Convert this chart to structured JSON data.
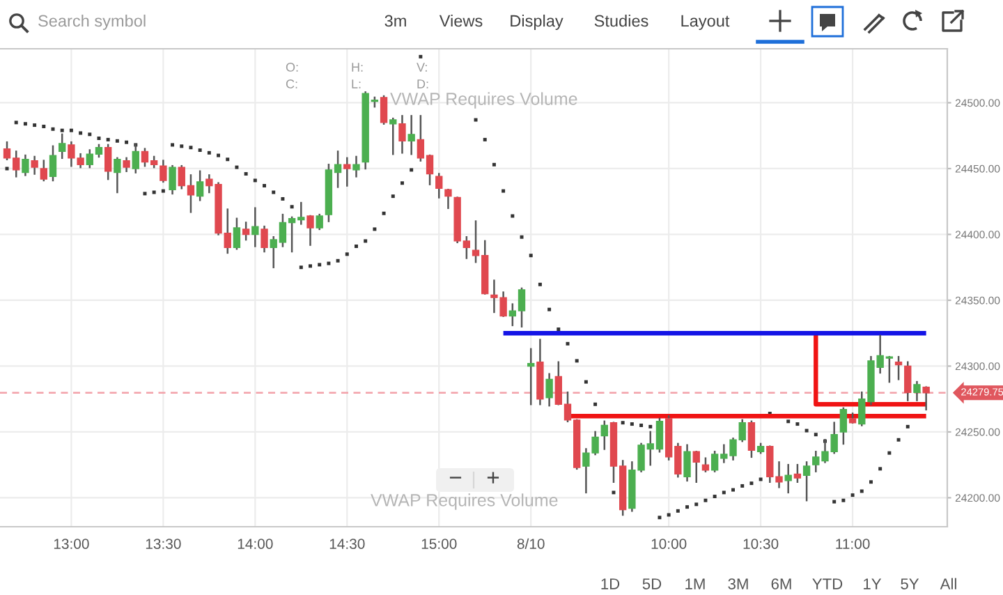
{
  "chart_data": {
    "type": "candlestick",
    "categories": [
      null,
      null,
      null,
      null,
      null,
      null,
      null,
      "13:00",
      null,
      null,
      null,
      null,
      null,
      null,
      null,
      null,
      null,
      "13:30",
      null,
      null,
      null,
      null,
      null,
      null,
      null,
      null,
      null,
      "14:00",
      null,
      null,
      null,
      null,
      null,
      null,
      null,
      null,
      null,
      "14:30",
      null,
      null,
      null,
      null,
      null,
      null,
      null,
      null,
      null,
      "15:00",
      null,
      null,
      null,
      null,
      null,
      null,
      null,
      null,
      null,
      "8/10",
      null,
      null,
      null,
      null,
      null,
      null,
      null,
      null,
      null,
      null,
      null,
      null,
      null,
      null,
      "10:00",
      null,
      null,
      null,
      null,
      null,
      null,
      null,
      null,
      null,
      "10:30",
      null,
      null,
      null,
      null,
      null,
      null,
      null,
      null,
      null,
      "11:00",
      null,
      null,
      null,
      null,
      null,
      null,
      null,
      null
    ],
    "ylim": [
      24178,
      24541
    ],
    "yticks": [
      {
        "value": 24200,
        "label": "24200.00"
      },
      {
        "value": 24250,
        "label": "24250.00"
      },
      {
        "value": 24300,
        "label": "24300.00"
      },
      {
        "value": 24350,
        "label": "24350.00"
      },
      {
        "value": 24400,
        "label": "24400.00"
      },
      {
        "value": 24450,
        "label": "24450.00"
      },
      {
        "value": 24500,
        "label": "24500.00"
      }
    ],
    "grid": true,
    "series": [
      {
        "color": "#555555",
        "ohlc": [
          [
            24465,
            24470,
            24457,
            24458
          ],
          [
            24458,
            24463,
            24444,
            24449
          ],
          [
            24447,
            24460,
            24445,
            24457
          ],
          [
            24456,
            24459,
            24446,
            24451
          ],
          [
            24450,
            24456,
            24441,
            24442
          ],
          [
            24444,
            24467,
            24441,
            24460
          ],
          [
            24463,
            24476,
            24458,
            24469
          ],
          [
            24468,
            24470,
            24452,
            24458
          ],
          [
            24458,
            24461,
            24451,
            24453
          ],
          [
            24453,
            24464,
            24451,
            24461
          ],
          [
            24461,
            24468,
            24459,
            24466
          ],
          [
            24466,
            24468,
            24442,
            24448
          ],
          [
            24447,
            24458,
            24432,
            24457
          ],
          [
            24456,
            24458,
            24448,
            24451
          ],
          [
            24450,
            24468,
            24447,
            24463
          ],
          [
            24463,
            24465,
            24452,
            24455
          ],
          [
            24456,
            24459,
            24451,
            24453
          ],
          [
            24452,
            24456,
            24440,
            24441
          ],
          [
            24434,
            24452,
            24431,
            24451
          ],
          [
            24451,
            24452,
            24435,
            24437
          ],
          [
            24437,
            24445,
            24417,
            24430
          ],
          [
            24429,
            24448,
            24426,
            24440
          ],
          [
            24442,
            24445,
            24432,
            24437
          ],
          [
            24438,
            24439,
            24400,
            24401
          ],
          [
            24401,
            24419,
            24386,
            24390
          ],
          [
            24390,
            24412,
            24389,
            24405
          ],
          [
            24404,
            24409,
            24396,
            24400
          ],
          [
            24400,
            24420,
            24391,
            24406
          ],
          [
            24404,
            24406,
            24387,
            24390
          ],
          [
            24390,
            24398,
            24375,
            24396
          ],
          [
            24394,
            24415,
            24391,
            24409
          ],
          [
            24409,
            24413,
            24387,
            24412
          ],
          [
            24411,
            24424,
            24408,
            24413
          ],
          [
            24414,
            24414,
            24392,
            24405
          ],
          [
            24405,
            24415,
            24404,
            24414
          ],
          [
            24415,
            24453,
            24410,
            24449
          ],
          [
            24447,
            24463,
            24436,
            24453
          ],
          [
            24453,
            24458,
            24437,
            24450
          ],
          [
            24449,
            24459,
            24444,
            24453
          ],
          [
            24455,
            24508,
            24450,
            24507
          ],
          [
            24501,
            24504,
            24497,
            24502
          ],
          [
            24504,
            24505,
            24484,
            24485
          ],
          [
            24484,
            24488,
            24461,
            24487
          ],
          [
            24484,
            24490,
            24462,
            24471
          ],
          [
            24471,
            24490,
            24461,
            24476
          ],
          [
            24472,
            24490,
            24456,
            24458
          ],
          [
            24460,
            24460,
            24438,
            24446
          ],
          [
            24444,
            24446,
            24428,
            24435
          ],
          [
            24434,
            24434,
            24420,
            24429
          ],
          [
            24428,
            24428,
            24394,
            24395
          ],
          [
            24395,
            24398,
            24382,
            24390
          ],
          [
            24388,
            24410,
            24379,
            24384
          ],
          [
            24384,
            24395,
            24355,
            24355
          ],
          [
            24354,
            24365,
            24341,
            24352
          ],
          [
            24352,
            24356,
            24338,
            24338
          ],
          [
            24338,
            24347,
            24331,
            24342
          ],
          [
            24342,
            24359,
            24330,
            24358
          ],
          [
            24300,
            24313,
            24271,
            24302
          ],
          [
            24303,
            24320,
            24271,
            24275
          ],
          [
            24276,
            24294,
            24270,
            24290
          ],
          [
            24292,
            24303,
            24271,
            24271
          ],
          [
            24271,
            24280,
            24258,
            24259
          ],
          [
            24259,
            24259,
            24222,
            24223
          ],
          [
            24224,
            24237,
            24204,
            24234
          ],
          [
            24234,
            24250,
            24233,
            24246
          ],
          [
            24247,
            24258,
            24237,
            24255
          ],
          [
            24257,
            24257,
            24212,
            24224
          ],
          [
            24224,
            24228,
            24187,
            24191
          ],
          [
            24192,
            24227,
            24190,
            24221
          ],
          [
            24221,
            24241,
            24220,
            24240
          ],
          [
            24237,
            24250,
            24225,
            24241
          ],
          [
            24237,
            24260,
            24235,
            24258
          ],
          [
            24260,
            24262,
            24229,
            24231
          ],
          [
            24239,
            24241,
            24216,
            24218
          ],
          [
            24216,
            24240,
            24213,
            24235
          ],
          [
            24235,
            24235,
            24212,
            24227
          ],
          [
            24225,
            24230,
            24220,
            24221
          ],
          [
            24221,
            24235,
            24220,
            24233
          ],
          [
            24230,
            24240,
            24227,
            24233
          ],
          [
            24232,
            24245,
            24229,
            24244
          ],
          [
            24244,
            24259,
            24243,
            24257
          ],
          [
            24257,
            24258,
            24231,
            24236
          ],
          [
            24235,
            24241,
            24234,
            24239
          ],
          [
            24239,
            24239,
            24212,
            24216
          ],
          [
            24216,
            24227,
            24208,
            24212
          ],
          [
            24213,
            24225,
            24204,
            24217
          ],
          [
            24218,
            24225,
            24212,
            24215
          ],
          [
            24217,
            24227,
            24198,
            24224
          ],
          [
            24225,
            24235,
            24220,
            24231
          ],
          [
            24228,
            24244,
            24227,
            24235
          ],
          [
            24235,
            24257,
            24234,
            24248
          ],
          [
            24250,
            24268,
            24241,
            24267
          ],
          [
            24260,
            24264,
            24257,
            24257
          ],
          [
            24256,
            24280,
            24255,
            24275
          ],
          [
            24273,
            24307,
            24271,
            24304
          ],
          [
            24299,
            24323,
            24295,
            24308
          ],
          [
            24306,
            24307,
            24288,
            24307
          ],
          [
            24303,
            24307,
            24290,
            24301
          ],
          [
            24300,
            24303,
            24274,
            24280
          ],
          [
            24280,
            24288,
            24274,
            24286
          ],
          [
            24284,
            24284,
            24267,
            24279.75
          ]
        ],
        "colors": [
          "#e0484f",
          "#e0484f",
          "#4caf50",
          "#e0484f",
          "#e0484f",
          "#4caf50",
          "#4caf50",
          "#e0484f",
          "#e0484f",
          "#4caf50",
          "#4caf50",
          "#e0484f",
          "#4caf50",
          "#e0484f",
          "#4caf50",
          "#e0484f",
          "#e0484f",
          "#e0484f",
          "#4caf50",
          "#e0484f",
          "#e0484f",
          "#4caf50",
          "#e0484f",
          "#e0484f",
          "#e0484f",
          "#4caf50",
          "#e0484f",
          "#4caf50",
          "#e0484f",
          "#4caf50",
          "#4caf50",
          "#4caf50",
          "#4caf50",
          "#e0484f",
          "#4caf50",
          "#4caf50",
          "#4caf50",
          "#e0484f",
          "#4caf50",
          "#4caf50",
          "#4caf50",
          "#e0484f",
          "#4caf50",
          "#e0484f",
          "#4caf50",
          "#e0484f",
          "#e0484f",
          "#e0484f",
          "#e0484f",
          "#e0484f",
          "#e0484f",
          "#e0484f",
          "#e0484f",
          "#e0484f",
          "#e0484f",
          "#4caf50",
          "#4caf50",
          "#4caf50",
          "#e0484f",
          "#4caf50",
          "#e0484f",
          "#e0484f",
          "#e0484f",
          "#4caf50",
          "#4caf50",
          "#4caf50",
          "#e0484f",
          "#e0484f",
          "#4caf50",
          "#4caf50",
          "#4caf50",
          "#4caf50",
          "#e0484f",
          "#e0484f",
          "#4caf50",
          "#e0484f",
          "#e0484f",
          "#4caf50",
          "#4caf50",
          "#4caf50",
          "#4caf50",
          "#e0484f",
          "#4caf50",
          "#e0484f",
          "#e0484f",
          "#4caf50",
          "#e0484f",
          "#4caf50",
          "#4caf50",
          "#4caf50",
          "#4caf50",
          "#4caf50",
          "#e0484f",
          "#4caf50",
          "#4caf50",
          "#4caf50",
          "#4caf50",
          "#e0484f",
          "#e0484f",
          "#4caf50",
          "#e0484f"
        ]
      },
      {
        "type": "scatter",
        "color": "#333333",
        "marker": "square",
        "values": [
          24450,
          24485,
          24484,
          24483,
          24482,
          24480,
          24479,
          24479,
          24477,
          24476,
          24473,
          24472,
          24471,
          24470,
          24468,
          24431,
          24432,
          24433,
          24468,
          24467,
          24466,
          24464,
          24462,
          24460,
          24457,
          24451,
          24446,
          24441,
          24437,
          24432,
          24427,
          24421,
          24375,
          24376,
          24377,
          24378,
          24380,
          24385,
          24391,
          24395,
          24404,
          24416,
          24429,
          24439,
          24449,
          24535,
          null,
          null,
          null,
          null,
          null,
          24487,
          24472,
          24453,
          24433,
          24414,
          24398,
          24384,
          24362,
          24343,
          24328,
          24317,
          24304,
          24288,
          24271,
          null,
          24204,
          24257,
          24256,
          24255,
          24254,
          24185,
          24187,
          24190,
          24193,
          24195,
          24198,
          24201,
          24204,
          24206,
          24209,
          24211,
          24214,
          24264,
          null,
          24258,
          24256,
          24251,
          24248,
          24243,
          24197,
          24198,
          24202,
          24205,
          24212,
          24222,
          24234,
          24244,
          24254,
          null,
          null
        ]
      },
      {
        "type": "step",
        "color": "#f01414",
        "values": [
          null,
          null,
          null,
          null,
          null,
          null,
          null,
          null,
          null,
          null,
          null,
          null,
          null,
          null,
          null,
          null,
          null,
          null,
          null,
          null,
          null,
          null,
          null,
          null,
          null,
          null,
          null,
          null,
          null,
          null,
          null,
          null,
          null,
          null,
          null,
          null,
          null,
          null,
          null,
          null,
          null,
          null,
          null,
          null,
          null,
          null,
          null,
          null,
          null,
          null,
          null,
          null,
          null,
          null,
          null,
          null,
          null,
          null,
          null,
          null,
          null,
          null,
          null,
          null,
          null,
          null,
          null,
          null,
          null,
          null,
          null,
          null,
          null,
          null,
          null,
          null,
          null,
          null,
          null,
          null,
          null,
          null,
          null,
          null,
          null,
          null,
          null,
          null,
          24325,
          24271,
          24271,
          24271,
          24271,
          24271,
          24271,
          24271,
          24271,
          24271,
          24271,
          24271,
          24271
        ]
      },
      {
        "type": "line",
        "color": "#f01414",
        "values": [
          null,
          null,
          null,
          null,
          null,
          null,
          null,
          null,
          null,
          null,
          null,
          null,
          null,
          null,
          null,
          null,
          null,
          null,
          null,
          null,
          null,
          null,
          null,
          null,
          null,
          null,
          null,
          null,
          null,
          null,
          null,
          null,
          null,
          null,
          null,
          null,
          null,
          null,
          null,
          null,
          null,
          null,
          null,
          null,
          null,
          null,
          null,
          null,
          null,
          null,
          null,
          null,
          null,
          null,
          null,
          null,
          null,
          null,
          null,
          null,
          null,
          24262,
          24262,
          24262,
          24262,
          24262,
          24262,
          24262,
          24262,
          24262,
          24262,
          24262,
          24262,
          24262,
          24262,
          24262,
          24262,
          24262,
          24262,
          24262,
          24262,
          24262,
          24262,
          24262,
          24262,
          24262,
          24262,
          24262,
          24262,
          24262,
          24262,
          24262,
          24262,
          24262,
          24262,
          24262,
          24262,
          24262,
          24262,
          24262,
          24262
        ]
      },
      {
        "type": "line",
        "color": "#1414e6",
        "values": [
          null,
          null,
          null,
          null,
          null,
          null,
          null,
          null,
          null,
          null,
          null,
          null,
          null,
          null,
          null,
          null,
          null,
          null,
          null,
          null,
          null,
          null,
          null,
          null,
          null,
          null,
          null,
          null,
          null,
          null,
          null,
          null,
          null,
          null,
          null,
          null,
          null,
          null,
          null,
          null,
          null,
          null,
          null,
          null,
          null,
          null,
          null,
          null,
          null,
          null,
          null,
          null,
          null,
          null,
          24325,
          24325,
          24325,
          24325,
          24325,
          24325,
          24325,
          24325,
          24325,
          24325,
          24325,
          24325,
          24325,
          24325,
          24325,
          24325,
          24325,
          24325,
          24325,
          24325,
          24325,
          24325,
          24325,
          24325,
          24325,
          24325,
          24325,
          24325,
          24325,
          24325,
          24325,
          24325,
          24325,
          24325,
          24325,
          24325,
          24325,
          24325,
          24325,
          24325,
          24325,
          24325,
          24325,
          24325,
          24325,
          24325,
          24325
        ]
      }
    ],
    "ref_lines": [
      {
        "axis": "y",
        "value": 24279.75,
        "label": "24279.75",
        "color": "#f2a0a8",
        "line_style": "dashed"
      }
    ],
    "annotations": [
      "Search symbol",
      "3m",
      "Views",
      "Display",
      "Studies",
      "Layout",
      "O:",
      "H:",
      "V:",
      "C:",
      "L:",
      "D:",
      "VWAP Requires Volume",
      "VWAP Requires Volume",
      "−",
      "+",
      "1D",
      "5D",
      "1M",
      "3M",
      "6M",
      "YTD",
      "1Y",
      "5Y",
      "All"
    ]
  }
}
